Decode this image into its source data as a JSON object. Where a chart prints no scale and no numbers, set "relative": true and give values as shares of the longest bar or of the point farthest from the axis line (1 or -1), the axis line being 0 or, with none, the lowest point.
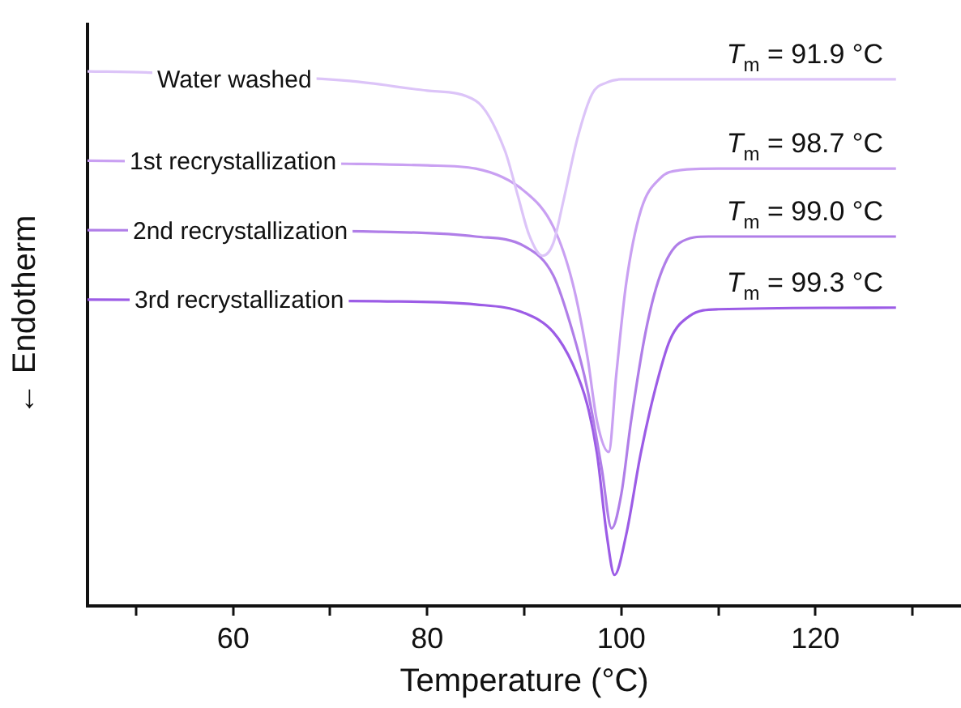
{
  "chart_data": {
    "type": "line",
    "xlabel": "Temperature (°C)",
    "ylabel": "← Endotherm",
    "relative": true,
    "xlim": [
      45,
      135
    ],
    "xticks": [
      {
        "value": 50,
        "label": null
      },
      60,
      {
        "value": 70,
        "label": null
      },
      80,
      {
        "value": 90,
        "label": null
      },
      100,
      {
        "value": 110,
        "label": null
      },
      120,
      {
        "value": 130,
        "label": null
      }
    ],
    "grid": false,
    "legend": false,
    "marker": "none",
    "line_style": "solid",
    "series": [
      {
        "name": "Water washed",
        "color": "#dcc4f8",
        "x": [
          45,
          51,
          72,
          80,
          85,
          88,
          89.3,
          90.5,
          91.9,
          93,
          94,
          95.5,
          97,
          98.5,
          100,
          128.3
        ],
        "values": [
          1.0,
          0.998,
          0.982,
          0.964,
          0.945,
          0.852,
          0.77,
          0.694,
          0.655,
          0.679,
          0.755,
          0.876,
          0.958,
          0.979,
          0.985,
          0.985
        ]
      },
      {
        "name": "1st recrystallization",
        "color": "#c9a0f2",
        "x": [
          45,
          72,
          80,
          85,
          90,
          93,
          95,
          96.5,
          97.5,
          98.7,
          99.5,
          100.5,
          102,
          104,
          106,
          110,
          128.3
        ],
        "values": [
          0.833,
          0.827,
          0.824,
          0.818,
          0.776,
          0.709,
          0.603,
          0.467,
          0.345,
          0.288,
          0.436,
          0.603,
          0.739,
          0.8,
          0.815,
          0.818,
          0.818
        ]
      },
      {
        "name": "2nd recrystallization",
        "color": "#b07ee8",
        "x": [
          45,
          75,
          85,
          90,
          93,
          95,
          96.5,
          98,
          99,
          100,
          101,
          102.5,
          104,
          106,
          109,
          128.3
        ],
        "values": [
          0.703,
          0.7,
          0.691,
          0.673,
          0.618,
          0.512,
          0.406,
          0.255,
          0.145,
          0.209,
          0.345,
          0.512,
          0.618,
          0.679,
          0.691,
          0.691
        ]
      },
      {
        "name": "3rd recrystallization",
        "color": "#9c5ce6",
        "x": [
          45,
          75,
          85,
          90,
          93,
          95,
          96.5,
          97.5,
          98.5,
          99.3,
          100.5,
          102,
          103.5,
          105,
          107,
          110,
          128.3
        ],
        "values": [
          0.573,
          0.57,
          0.564,
          0.548,
          0.512,
          0.452,
          0.376,
          0.285,
          0.133,
          0.058,
          0.133,
          0.285,
          0.406,
          0.497,
          0.542,
          0.555,
          0.558
        ]
      }
    ],
    "annotations": [
      "T$_{m}$ = 91.9 °C",
      "T$_{m}$ = 98.7 °C",
      "T$_{m}$ = 99.0 °C",
      "T$_{m}$ = 99.3 °C"
    ]
  }
}
